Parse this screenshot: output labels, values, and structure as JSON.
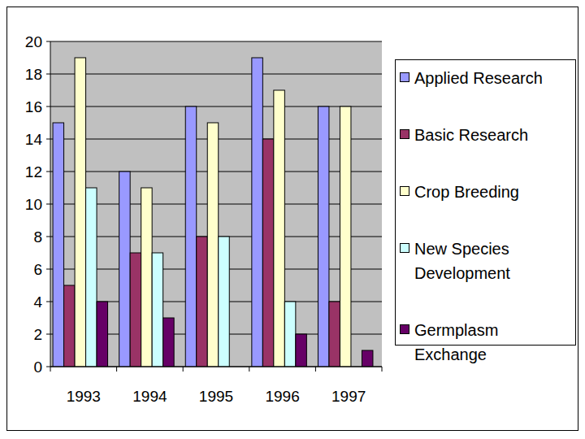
{
  "chart_data": {
    "type": "bar",
    "categories": [
      "1993",
      "1994",
      "1995",
      "1996",
      "1997"
    ],
    "series": [
      {
        "name": "Applied Research",
        "color": "#9999ff",
        "values": [
          15,
          12,
          16,
          19,
          16
        ]
      },
      {
        "name": "Basic Research",
        "color": "#993366",
        "values": [
          5,
          7,
          8,
          14,
          4
        ]
      },
      {
        "name": "Crop Breeding",
        "color": "#ffffcc",
        "values": [
          19,
          11,
          15,
          17,
          16
        ]
      },
      {
        "name": "New Species Development",
        "color": "#ccffff",
        "values": [
          11,
          7,
          8,
          4,
          0
        ]
      },
      {
        "name": "Germplasm Exchange",
        "color": "#660066",
        "values": [
          4,
          3,
          0,
          2,
          1
        ]
      }
    ],
    "ylim": [
      0,
      20
    ],
    "yticks": [
      0,
      2,
      4,
      6,
      8,
      10,
      12,
      14,
      16,
      18,
      20
    ],
    "grid": true,
    "legend": "right"
  }
}
